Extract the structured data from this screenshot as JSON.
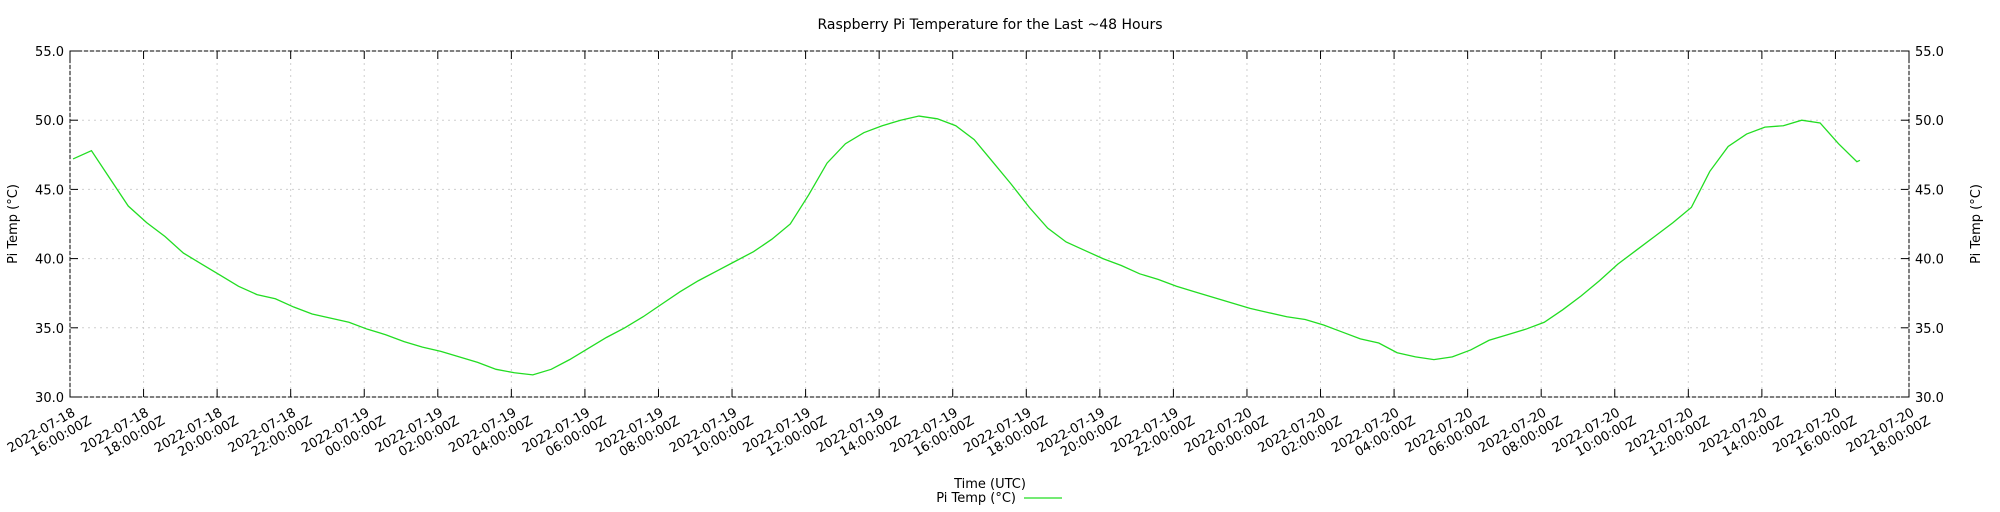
{
  "chart_data": {
    "type": "line",
    "title": "Raspberry Pi Temperature for the Last ~48 Hours",
    "x_label": "Time (UTC)",
    "y_label": "Pi Temp (°C)",
    "y2_label": "Pi Temp (°C)",
    "grid": true,
    "legend": "bottom",
    "xlim": [
      "2022-07-18T16:00:00Z",
      "2022-07-20T18:00:00Z"
    ],
    "xticks": [
      {
        "value": "2022-07-18T16:00:00Z",
        "label": "2022-07-18 16:00:00Z"
      },
      {
        "value": "2022-07-18T18:00:00Z",
        "label": "2022-07-18 18:00:00Z"
      },
      {
        "value": "2022-07-18T20:00:00Z",
        "label": "2022-07-18 20:00:00Z"
      },
      {
        "value": "2022-07-18T22:00:00Z",
        "label": "2022-07-18 22:00:00Z"
      },
      {
        "value": "2022-07-19T00:00:00Z",
        "label": "2022-07-19 00:00:00Z"
      },
      {
        "value": "2022-07-19T02:00:00Z",
        "label": "2022-07-19 02:00:00Z"
      },
      {
        "value": "2022-07-19T04:00:00Z",
        "label": "2022-07-19 04:00:00Z"
      },
      {
        "value": "2022-07-19T06:00:00Z",
        "label": "2022-07-19 06:00:00Z"
      },
      {
        "value": "2022-07-19T08:00:00Z",
        "label": "2022-07-19 08:00:00Z"
      },
      {
        "value": "2022-07-19T10:00:00Z",
        "label": "2022-07-19 10:00:00Z"
      },
      {
        "value": "2022-07-19T12:00:00Z",
        "label": "2022-07-19 12:00:00Z"
      },
      {
        "value": "2022-07-19T14:00:00Z",
        "label": "2022-07-19 14:00:00Z"
      },
      {
        "value": "2022-07-19T16:00:00Z",
        "label": "2022-07-19 16:00:00Z"
      },
      {
        "value": "2022-07-19T18:00:00Z",
        "label": "2022-07-19 18:00:00Z"
      },
      {
        "value": "2022-07-19T20:00:00Z",
        "label": "2022-07-19 20:00:00Z"
      },
      {
        "value": "2022-07-19T22:00:00Z",
        "label": "2022-07-19 22:00:00Z"
      },
      {
        "value": "2022-07-20T00:00:00Z",
        "label": "2022-07-20 00:00:00Z"
      },
      {
        "value": "2022-07-20T02:00:00Z",
        "label": "2022-07-20 02:00:00Z"
      },
      {
        "value": "2022-07-20T04:00:00Z",
        "label": "2022-07-20 04:00:00Z"
      },
      {
        "value": "2022-07-20T06:00:00Z",
        "label": "2022-07-20 06:00:00Z"
      },
      {
        "value": "2022-07-20T08:00:00Z",
        "label": "2022-07-20 08:00:00Z"
      },
      {
        "value": "2022-07-20T10:00:00Z",
        "label": "2022-07-20 10:00:00Z"
      },
      {
        "value": "2022-07-20T12:00:00Z",
        "label": "2022-07-20 12:00:00Z"
      },
      {
        "value": "2022-07-20T14:00:00Z",
        "label": "2022-07-20 14:00:00Z"
      },
      {
        "value": "2022-07-20T16:00:00Z",
        "label": "2022-07-20 16:00:00Z"
      },
      {
        "value": "2022-07-20T18:00:00Z",
        "label": "2022-07-20 18:00:00Z"
      }
    ],
    "ylim": [
      30,
      55
    ],
    "yticks": [
      {
        "value": 30,
        "label": "30.0"
      },
      {
        "value": 35,
        "label": "35.0"
      },
      {
        "value": 40,
        "label": "40.0"
      },
      {
        "value": 45,
        "label": "45.0"
      },
      {
        "value": 50,
        "label": "50.0"
      },
      {
        "value": 55,
        "label": "55.0"
      }
    ],
    "y2lim": [
      30,
      55
    ],
    "y2ticks": [
      {
        "value": 30,
        "label": "30.0"
      },
      {
        "value": 35,
        "label": "35.0"
      },
      {
        "value": 40,
        "label": "40.0"
      },
      {
        "value": 45,
        "label": "45.0"
      },
      {
        "value": 50,
        "label": "50.0"
      },
      {
        "value": 55,
        "label": "55.0"
      }
    ],
    "x": [
      "2022-07-18T16:05:00Z",
      "2022-07-18T16:35:00Z",
      "2022-07-18T17:05:00Z",
      "2022-07-18T17:35:00Z",
      "2022-07-18T18:05:00Z",
      "2022-07-18T18:35:00Z",
      "2022-07-18T19:05:00Z",
      "2022-07-18T19:35:00Z",
      "2022-07-18T20:05:00Z",
      "2022-07-18T20:35:00Z",
      "2022-07-18T21:05:00Z",
      "2022-07-18T21:35:00Z",
      "2022-07-18T22:05:00Z",
      "2022-07-18T22:35:00Z",
      "2022-07-18T23:05:00Z",
      "2022-07-18T23:35:00Z",
      "2022-07-19T00:05:00Z",
      "2022-07-19T00:35:00Z",
      "2022-07-19T01:05:00Z",
      "2022-07-19T01:35:00Z",
      "2022-07-19T02:05:00Z",
      "2022-07-19T02:35:00Z",
      "2022-07-19T03:05:00Z",
      "2022-07-19T03:35:00Z",
      "2022-07-19T04:05:00Z",
      "2022-07-19T04:35:00Z",
      "2022-07-19T05:05:00Z",
      "2022-07-19T05:35:00Z",
      "2022-07-19T06:05:00Z",
      "2022-07-19T06:35:00Z",
      "2022-07-19T07:05:00Z",
      "2022-07-19T07:35:00Z",
      "2022-07-19T08:05:00Z",
      "2022-07-19T08:35:00Z",
      "2022-07-19T09:05:00Z",
      "2022-07-19T09:35:00Z",
      "2022-07-19T10:05:00Z",
      "2022-07-19T10:35:00Z",
      "2022-07-19T11:05:00Z",
      "2022-07-19T11:35:00Z",
      "2022-07-19T12:05:00Z",
      "2022-07-19T12:35:00Z",
      "2022-07-19T13:05:00Z",
      "2022-07-19T13:35:00Z",
      "2022-07-19T14:05:00Z",
      "2022-07-19T14:35:00Z",
      "2022-07-19T15:05:00Z",
      "2022-07-19T15:35:00Z",
      "2022-07-19T16:05:00Z",
      "2022-07-19T16:35:00Z",
      "2022-07-19T17:05:00Z",
      "2022-07-19T17:35:00Z",
      "2022-07-19T18:05:00Z",
      "2022-07-19T18:35:00Z",
      "2022-07-19T19:05:00Z",
      "2022-07-19T19:35:00Z",
      "2022-07-19T20:05:00Z",
      "2022-07-19T20:35:00Z",
      "2022-07-19T21:05:00Z",
      "2022-07-19T21:35:00Z",
      "2022-07-19T22:05:00Z",
      "2022-07-19T22:35:00Z",
      "2022-07-19T23:05:00Z",
      "2022-07-19T23:35:00Z",
      "2022-07-20T00:05:00Z",
      "2022-07-20T00:35:00Z",
      "2022-07-20T01:05:00Z",
      "2022-07-20T01:35:00Z",
      "2022-07-20T02:05:00Z",
      "2022-07-20T02:35:00Z",
      "2022-07-20T03:05:00Z",
      "2022-07-20T03:35:00Z",
      "2022-07-20T04:05:00Z",
      "2022-07-20T04:35:00Z",
      "2022-07-20T05:05:00Z",
      "2022-07-20T05:35:00Z",
      "2022-07-20T06:05:00Z",
      "2022-07-20T06:35:00Z",
      "2022-07-20T07:05:00Z",
      "2022-07-20T07:35:00Z",
      "2022-07-20T08:05:00Z",
      "2022-07-20T08:35:00Z",
      "2022-07-20T09:05:00Z",
      "2022-07-20T09:35:00Z",
      "2022-07-20T10:05:00Z",
      "2022-07-20T10:35:00Z",
      "2022-07-20T11:05:00Z",
      "2022-07-20T11:35:00Z",
      "2022-07-20T12:05:00Z",
      "2022-07-20T12:35:00Z",
      "2022-07-20T13:05:00Z",
      "2022-07-20T13:35:00Z",
      "2022-07-20T14:05:00Z",
      "2022-07-20T14:35:00Z",
      "2022-07-20T15:05:00Z",
      "2022-07-20T15:35:00Z",
      "2022-07-20T16:05:00Z",
      "2022-07-20T16:35:00Z",
      "2022-07-20T16:40:00Z"
    ],
    "series": [
      {
        "name": "Pi Temp (°C)",
        "color": "#22dd22",
        "values": [
          47.2,
          47.8,
          45.8,
          43.8,
          42.6,
          41.6,
          40.4,
          39.6,
          38.8,
          38.0,
          37.4,
          37.1,
          36.5,
          36.0,
          35.7,
          35.4,
          34.9,
          34.5,
          34.0,
          33.6,
          33.3,
          32.9,
          32.5,
          32.0,
          31.75,
          31.6,
          32.0,
          32.7,
          33.5,
          34.3,
          35.0,
          35.8,
          36.7,
          37.6,
          38.4,
          39.1,
          39.8,
          40.5,
          41.4,
          42.5,
          44.6,
          46.9,
          48.3,
          49.1,
          49.6,
          50.0,
          50.3,
          50.1,
          49.6,
          48.6,
          47.0,
          45.4,
          43.7,
          42.2,
          41.2,
          40.6,
          40.0,
          39.5,
          38.9,
          38.5,
          38.0,
          37.6,
          37.2,
          36.8,
          36.4,
          36.1,
          35.8,
          35.6,
          35.2,
          34.7,
          34.2,
          33.9,
          33.2,
          32.9,
          32.7,
          32.9,
          33.4,
          34.1,
          34.5,
          34.9,
          35.4,
          36.3,
          37.3,
          38.4,
          39.6,
          40.6,
          41.6,
          42.6,
          43.7,
          46.3,
          48.1,
          49.0,
          49.5,
          49.6,
          50.0,
          49.8,
          48.3,
          47.0,
          47.1
        ]
      }
    ]
  }
}
